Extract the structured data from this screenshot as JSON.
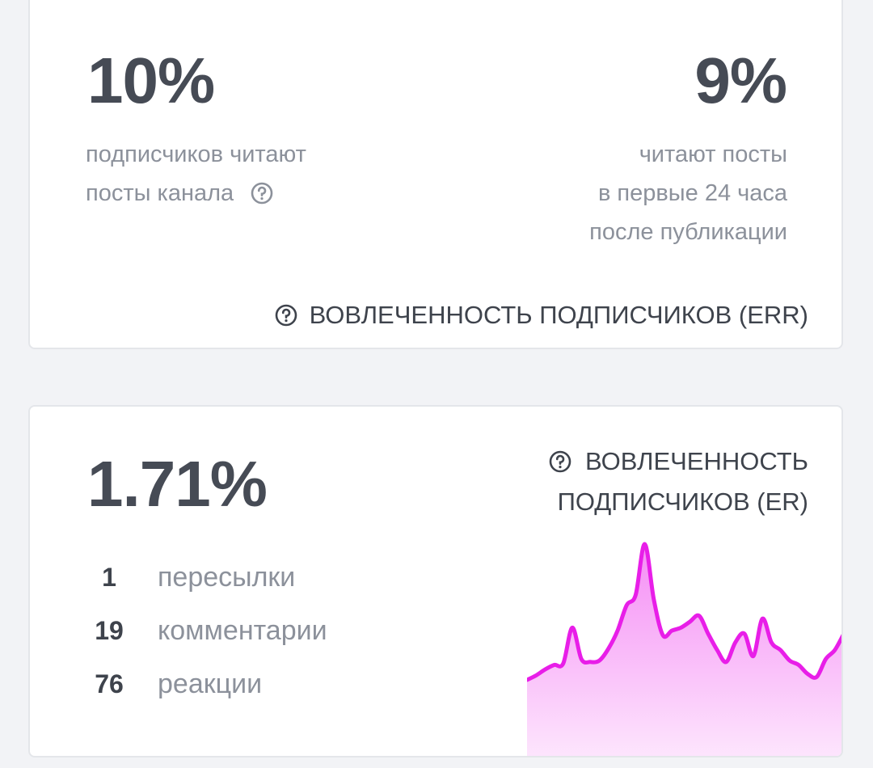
{
  "err_card": {
    "left_value": "10%",
    "left_desc": [
      "подписчиков читают",
      "посты канала"
    ],
    "right_value": "9%",
    "right_desc": [
      "читают посты",
      "в первые 24 часа",
      "после публикации"
    ],
    "caption": "ВОВЛЕЧЕННОСТЬ ПОДПИСЧИКОВ (ERR)"
  },
  "er_card": {
    "value": "1.71%",
    "caption_lines": [
      "ВОВЛЕЧЕННОСТЬ",
      "ПОДПИСЧИКОВ (ER)"
    ],
    "stats": [
      {
        "num": "1",
        "label": "пересылки"
      },
      {
        "num": "19",
        "label": "комментарии"
      },
      {
        "num": "76",
        "label": "реакции"
      }
    ],
    "sparkline": {
      "color": "#e81ee8",
      "fill_top": "#f58ef5",
      "fill_bottom": "#fde6fd",
      "values": [
        9,
        12,
        16,
        19,
        20,
        44,
        23,
        21,
        22,
        30,
        42,
        59,
        66,
        100,
        63,
        39,
        42,
        44,
        48,
        52,
        40,
        29,
        21,
        34,
        40,
        25,
        50,
        34,
        29,
        22,
        19,
        13,
        11,
        23,
        29,
        40
      ]
    }
  }
}
